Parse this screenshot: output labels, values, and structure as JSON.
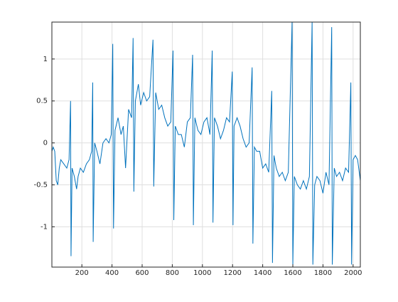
{
  "chart_data": {
    "type": "line",
    "color": "#0072bd",
    "grid": true,
    "xlim": [
      1,
      2048
    ],
    "xticks": [
      200,
      400,
      600,
      800,
      1000,
      1200,
      1400,
      1600,
      1800,
      2000
    ],
    "ylim": [
      -1.48,
      1.44
    ],
    "yticks": [
      -1,
      -0.5,
      0,
      0.5,
      1
    ],
    "x": [
      1,
      10,
      20,
      30,
      40,
      50,
      60,
      80,
      100,
      115,
      125,
      128,
      135,
      150,
      165,
      175,
      190,
      210,
      230,
      250,
      265,
      272,
      275,
      285,
      300,
      320,
      340,
      360,
      380,
      395,
      405,
      410,
      420,
      440,
      460,
      475,
      490,
      510,
      530,
      540,
      545,
      555,
      575,
      590,
      610,
      630,
      650,
      672,
      677,
      690,
      710,
      730,
      750,
      770,
      790,
      805,
      810,
      820,
      840,
      860,
      880,
      900,
      920,
      935,
      940,
      950,
      970,
      990,
      1010,
      1030,
      1050,
      1065,
      1070,
      1080,
      1100,
      1120,
      1140,
      1160,
      1180,
      1198,
      1203,
      1210,
      1230,
      1250,
      1270,
      1290,
      1310,
      1330,
      1335,
      1345,
      1360,
      1380,
      1400,
      1420,
      1440,
      1460,
      1465,
      1475,
      1490,
      1510,
      1530,
      1550,
      1570,
      1595,
      1600,
      1610,
      1630,
      1650,
      1670,
      1690,
      1710,
      1728,
      1733,
      1745,
      1760,
      1780,
      1800,
      1820,
      1840,
      1858,
      1862,
      1875,
      1890,
      1910,
      1930,
      1950,
      1970,
      1985,
      1990,
      2000,
      2015,
      2030,
      2048
    ],
    "values": [
      -0.1,
      -0.05,
      -0.1,
      -0.45,
      -0.5,
      -0.3,
      -0.2,
      -0.25,
      -0.3,
      -0.2,
      0.5,
      -1.35,
      -0.3,
      -0.4,
      -0.55,
      -0.4,
      -0.3,
      -0.35,
      -0.25,
      -0.2,
      -0.1,
      0.72,
      -1.18,
      0,
      -0.1,
      -0.25,
      0,
      0.05,
      0,
      0.1,
      1.18,
      -1.02,
      0.15,
      0.3,
      0.1,
      0.2,
      -0.3,
      0.4,
      0.3,
      1.25,
      -0.58,
      0.5,
      0.7,
      0.45,
      0.6,
      0.5,
      0.55,
      1.23,
      -0.52,
      0.6,
      0.4,
      0.45,
      0.3,
      0.2,
      0.25,
      1.1,
      -0.92,
      0.2,
      0.1,
      0.1,
      -0.05,
      0.25,
      0.3,
      1.05,
      -0.98,
      0.3,
      0.15,
      0.1,
      0.25,
      0.3,
      0.1,
      1.1,
      -0.95,
      0.3,
      0.2,
      0.05,
      0.15,
      0.3,
      0.25,
      0.85,
      -0.98,
      0.2,
      0.3,
      0.2,
      0.05,
      -0.05,
      0,
      0.9,
      -1.2,
      -0.05,
      -0.1,
      -0.1,
      -0.3,
      -0.25,
      -0.35,
      0.62,
      -1.43,
      -0.15,
      -0.3,
      -0.4,
      -0.35,
      -0.45,
      -0.35,
      1.44,
      -1.45,
      -0.4,
      -0.5,
      -0.55,
      -0.45,
      -0.55,
      -0.4,
      1.44,
      -1.45,
      -0.5,
      -0.4,
      -0.45,
      -0.6,
      -0.35,
      -0.5,
      1.38,
      -1.45,
      -0.3,
      -0.4,
      -0.35,
      -0.45,
      -0.3,
      -0.35,
      0.72,
      -1.45,
      -0.2,
      -0.15,
      -0.2,
      -0.45
    ]
  }
}
